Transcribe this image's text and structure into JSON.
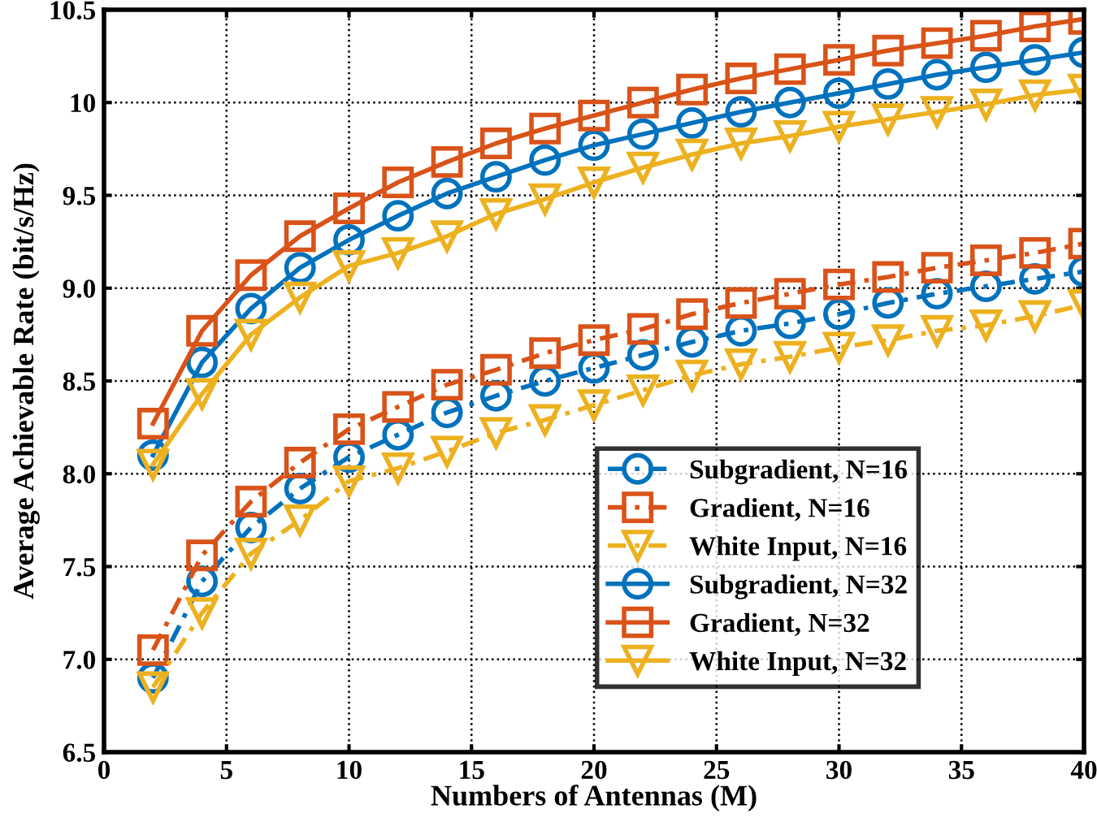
{
  "chart_data": {
    "type": "line",
    "xlabel": "Numbers of Antennas (M)",
    "ylabel": "Average Achievable Rate (bit/s/Hz)",
    "x": [
      2,
      4,
      6,
      8,
      10,
      12,
      14,
      16,
      18,
      20,
      22,
      24,
      26,
      28,
      30,
      32,
      34,
      36,
      38,
      40
    ],
    "xlim": [
      0,
      40
    ],
    "xticks": [
      0,
      5,
      10,
      15,
      20,
      25,
      30,
      35,
      40
    ],
    "ylim": [
      6.5,
      10.5
    ],
    "yticks": [
      {
        "value": 6.5,
        "label": "6.5"
      },
      {
        "value": 7.0,
        "label": "7.0"
      },
      {
        "value": 7.5,
        "label": "7.5"
      },
      {
        "value": 8.0,
        "label": "8.0"
      },
      {
        "value": 8.5,
        "label": "8.5"
      },
      {
        "value": 9.0,
        "label": "9.0"
      },
      {
        "value": 9.5,
        "label": "9.5"
      },
      {
        "value": 10,
        "label": "10"
      },
      {
        "value": 10.5,
        "label": "10.5"
      }
    ],
    "grid": true,
    "legend": "bottom right",
    "series": [
      {
        "name": "Subgradient, N=16",
        "color": "#0072bd",
        "marker": "circle",
        "line_style": "dashed",
        "values": [
          6.9,
          7.42,
          7.71,
          7.92,
          8.09,
          8.21,
          8.33,
          8.42,
          8.5,
          8.57,
          8.64,
          8.71,
          8.77,
          8.81,
          8.86,
          8.92,
          8.97,
          9.01,
          9.05,
          9.09
        ]
      },
      {
        "name": "Gradient, N=16",
        "color": "#d95319",
        "marker": "square",
        "line_style": "dashed",
        "values": [
          7.05,
          7.56,
          7.85,
          8.06,
          8.24,
          8.36,
          8.48,
          8.56,
          8.65,
          8.72,
          8.78,
          8.86,
          8.92,
          8.97,
          9.02,
          9.06,
          9.11,
          9.15,
          9.19,
          9.24
        ]
      },
      {
        "name": "White Input, N=16",
        "color": "#edb120",
        "marker": "triangle",
        "line_style": "dashed",
        "values": [
          6.85,
          7.25,
          7.57,
          7.75,
          7.96,
          8.03,
          8.12,
          8.22,
          8.29,
          8.37,
          8.45,
          8.53,
          8.59,
          8.63,
          8.68,
          8.72,
          8.77,
          8.8,
          8.85,
          8.91
        ]
      },
      {
        "name": "Subgradient, N=32",
        "color": "#0072bd",
        "marker": "circle",
        "line_style": "solid",
        "values": [
          8.1,
          8.6,
          8.89,
          9.11,
          9.26,
          9.39,
          9.51,
          9.6,
          9.69,
          9.77,
          9.83,
          9.89,
          9.95,
          10.0,
          10.05,
          10.1,
          10.15,
          10.19,
          10.23,
          10.27
        ]
      },
      {
        "name": "Gradient, N=32",
        "color": "#d95319",
        "marker": "square",
        "line_style": "solid",
        "values": [
          8.27,
          8.77,
          9.07,
          9.28,
          9.43,
          9.57,
          9.68,
          9.78,
          9.86,
          9.93,
          10.0,
          10.07,
          10.13,
          10.18,
          10.23,
          10.28,
          10.32,
          10.36,
          10.41,
          10.45
        ]
      },
      {
        "name": "White Input, N=32",
        "color": "#edb120",
        "marker": "triangle",
        "line_style": "solid",
        "values": [
          8.05,
          8.43,
          8.75,
          8.95,
          9.12,
          9.19,
          9.28,
          9.4,
          9.48,
          9.57,
          9.65,
          9.72,
          9.78,
          9.82,
          9.87,
          9.91,
          9.95,
          9.99,
          10.04,
          10.07
        ]
      }
    ]
  }
}
